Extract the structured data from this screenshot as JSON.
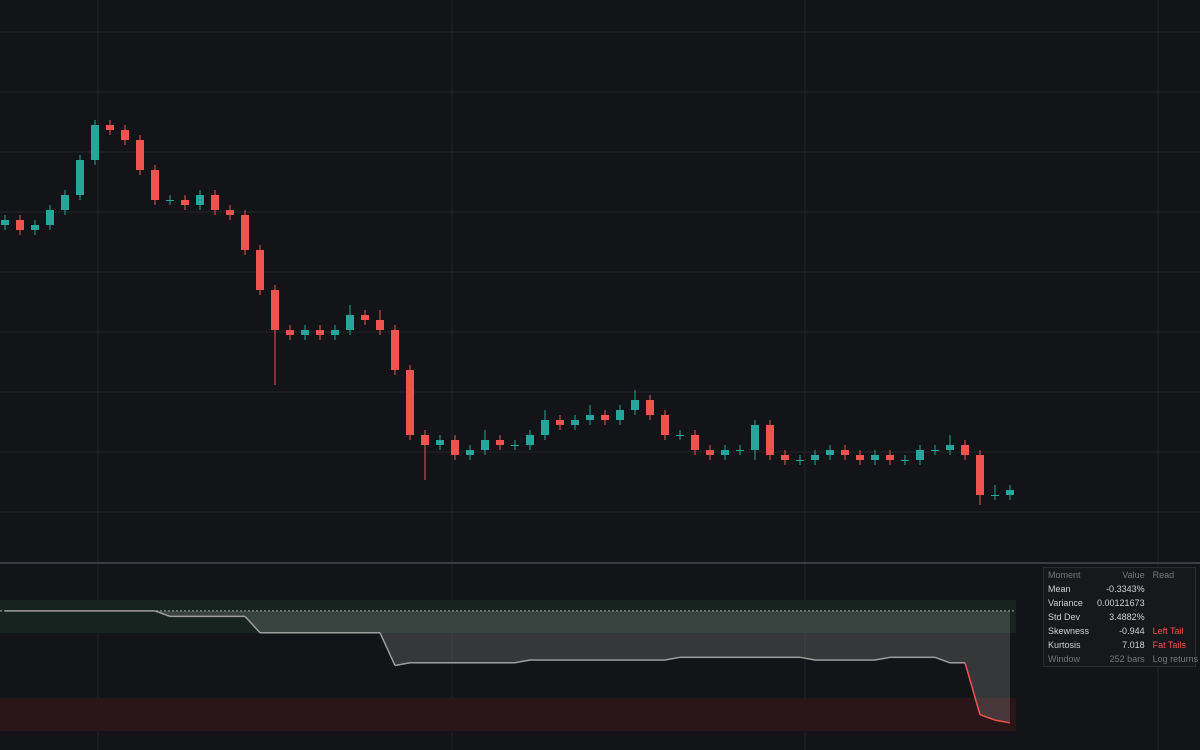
{
  "chart_data": {
    "type": "candlestick",
    "ylim": [
      0,
      112
    ],
    "up_color": "#26a69a",
    "down_color": "#ef5350",
    "candles": [
      [
        67,
        69,
        66,
        68
      ],
      [
        68,
        69,
        65,
        66
      ],
      [
        66,
        68,
        65,
        67
      ],
      [
        67,
        71,
        66,
        70
      ],
      [
        70,
        74,
        69,
        73
      ],
      [
        73,
        81,
        72,
        80
      ],
      [
        80,
        88,
        79,
        87
      ],
      [
        87,
        88,
        85,
        86
      ],
      [
        86,
        87,
        83,
        84
      ],
      [
        84,
        85,
        77,
        78
      ],
      [
        78,
        79,
        71,
        72
      ],
      [
        72,
        73,
        71,
        72
      ],
      [
        72,
        73,
        70,
        71
      ],
      [
        71,
        74,
        70,
        73
      ],
      [
        73,
        74,
        69,
        70
      ],
      [
        70,
        71,
        68,
        69
      ],
      [
        69,
        70,
        61,
        62
      ],
      [
        62,
        63,
        53,
        54
      ],
      [
        54,
        55,
        35,
        46
      ],
      [
        46,
        47,
        44,
        45
      ],
      [
        45,
        47,
        44,
        46
      ],
      [
        46,
        47,
        44,
        45
      ],
      [
        45,
        47,
        44,
        46
      ],
      [
        46,
        51,
        45,
        49
      ],
      [
        49,
        50,
        47,
        48
      ],
      [
        48,
        50,
        45,
        46
      ],
      [
        46,
        47,
        37,
        38
      ],
      [
        38,
        39,
        24,
        25
      ],
      [
        25,
        26,
        16,
        23
      ],
      [
        23,
        25,
        22,
        24
      ],
      [
        24,
        25,
        20,
        21
      ],
      [
        21,
        23,
        20,
        22
      ],
      [
        22,
        26,
        21,
        24
      ],
      [
        24,
        25,
        22,
        23
      ],
      [
        23,
        24,
        22,
        23
      ],
      [
        23,
        26,
        22,
        25
      ],
      [
        25,
        30,
        24,
        28
      ],
      [
        28,
        29,
        26,
        27
      ],
      [
        27,
        29,
        26,
        28
      ],
      [
        28,
        31,
        27,
        29
      ],
      [
        29,
        30,
        27,
        28
      ],
      [
        28,
        31,
        27,
        30
      ],
      [
        30,
        34,
        29,
        32
      ],
      [
        32,
        33,
        28,
        29
      ],
      [
        29,
        30,
        24,
        25
      ],
      [
        25,
        26,
        24,
        25
      ],
      [
        25,
        26,
        21,
        22
      ],
      [
        22,
        23,
        20,
        21
      ],
      [
        21,
        23,
        20,
        22
      ],
      [
        22,
        23,
        21,
        22
      ],
      [
        22,
        28,
        20,
        27
      ],
      [
        27,
        28,
        20,
        21
      ],
      [
        21,
        22,
        19,
        20
      ],
      [
        20,
        21,
        19,
        20
      ],
      [
        20,
        22,
        19,
        21
      ],
      [
        21,
        23,
        20,
        22
      ],
      [
        22,
        23,
        20,
        21
      ],
      [
        21,
        22,
        19,
        20
      ],
      [
        20,
        22,
        19,
        21
      ],
      [
        21,
        22,
        19,
        20
      ],
      [
        20,
        21,
        19,
        20
      ],
      [
        20,
        23,
        19,
        22
      ],
      [
        22,
        23,
        21,
        22
      ],
      [
        22,
        25,
        21,
        23
      ],
      [
        23,
        24,
        20,
        21
      ],
      [
        21,
        22,
        11,
        13
      ],
      [
        13,
        15,
        12,
        13
      ],
      [
        13,
        15,
        12,
        14
      ]
    ],
    "indicator": {
      "ylim": [
        -2.2,
        0.2
      ],
      "color": "#9e9e9e",
      "alert_color": "#ef5350",
      "values": [
        0,
        0,
        0,
        0,
        0,
        0,
        0,
        0,
        0,
        0,
        0,
        -0.1,
        -0.1,
        -0.1,
        -0.1,
        -0.1,
        -0.1,
        -0.4,
        -0.4,
        -0.4,
        -0.4,
        -0.4,
        -0.4,
        -0.4,
        -0.4,
        -0.4,
        -1.0,
        -0.95,
        -0.95,
        -0.95,
        -0.95,
        -0.95,
        -0.95,
        -0.95,
        -0.95,
        -0.9,
        -0.9,
        -0.9,
        -0.9,
        -0.9,
        -0.9,
        -0.9,
        -0.9,
        -0.9,
        -0.9,
        -0.85,
        -0.85,
        -0.85,
        -0.85,
        -0.85,
        -0.85,
        -0.85,
        -0.85,
        -0.85,
        -0.9,
        -0.9,
        -0.9,
        -0.9,
        -0.9,
        -0.85,
        -0.85,
        -0.85,
        -0.85,
        -0.95,
        -0.95,
        -1.9,
        -2.0,
        -2.05
      ]
    }
  },
  "table": {
    "header": [
      "Moment",
      "Value",
      "Read"
    ],
    "rows": [
      [
        "Mean",
        "-0.3343%",
        ""
      ],
      [
        "Variance",
        "0.00121673",
        ""
      ],
      [
        "Std Dev",
        "3.4882%",
        ""
      ],
      [
        "Skewness",
        "-0.944",
        "Left Tail"
      ],
      [
        "Kurtosis",
        "7.018",
        "Fat Tails"
      ],
      [
        "Window",
        "252 bars",
        "Log returns"
      ]
    ]
  }
}
